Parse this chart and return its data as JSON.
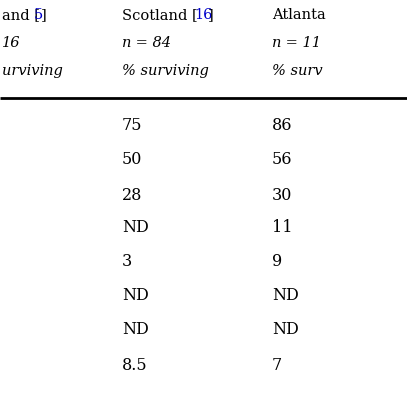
{
  "header_row1": [
    "and [5]",
    "Scotland [16]",
    "Atlanta"
  ],
  "header_row2": [
    "16",
    "n = 84",
    "n = 11"
  ],
  "header_row3": [
    "urviving",
    "% surviving",
    "% surv"
  ],
  "col2_values": [
    "75",
    "50",
    "28",
    "ND",
    "3",
    "ND",
    "ND",
    "8.5"
  ],
  "col3_values": [
    "86",
    "56",
    "30",
    "11",
    "9",
    "ND",
    "ND",
    "7"
  ],
  "ref_color_5": "#0000cc",
  "ref_color_16": "#0000cc",
  "bg_color": "#ffffff",
  "text_color": "#000000",
  "figsize": [
    4.07,
    4.07
  ],
  "dpi": 100
}
